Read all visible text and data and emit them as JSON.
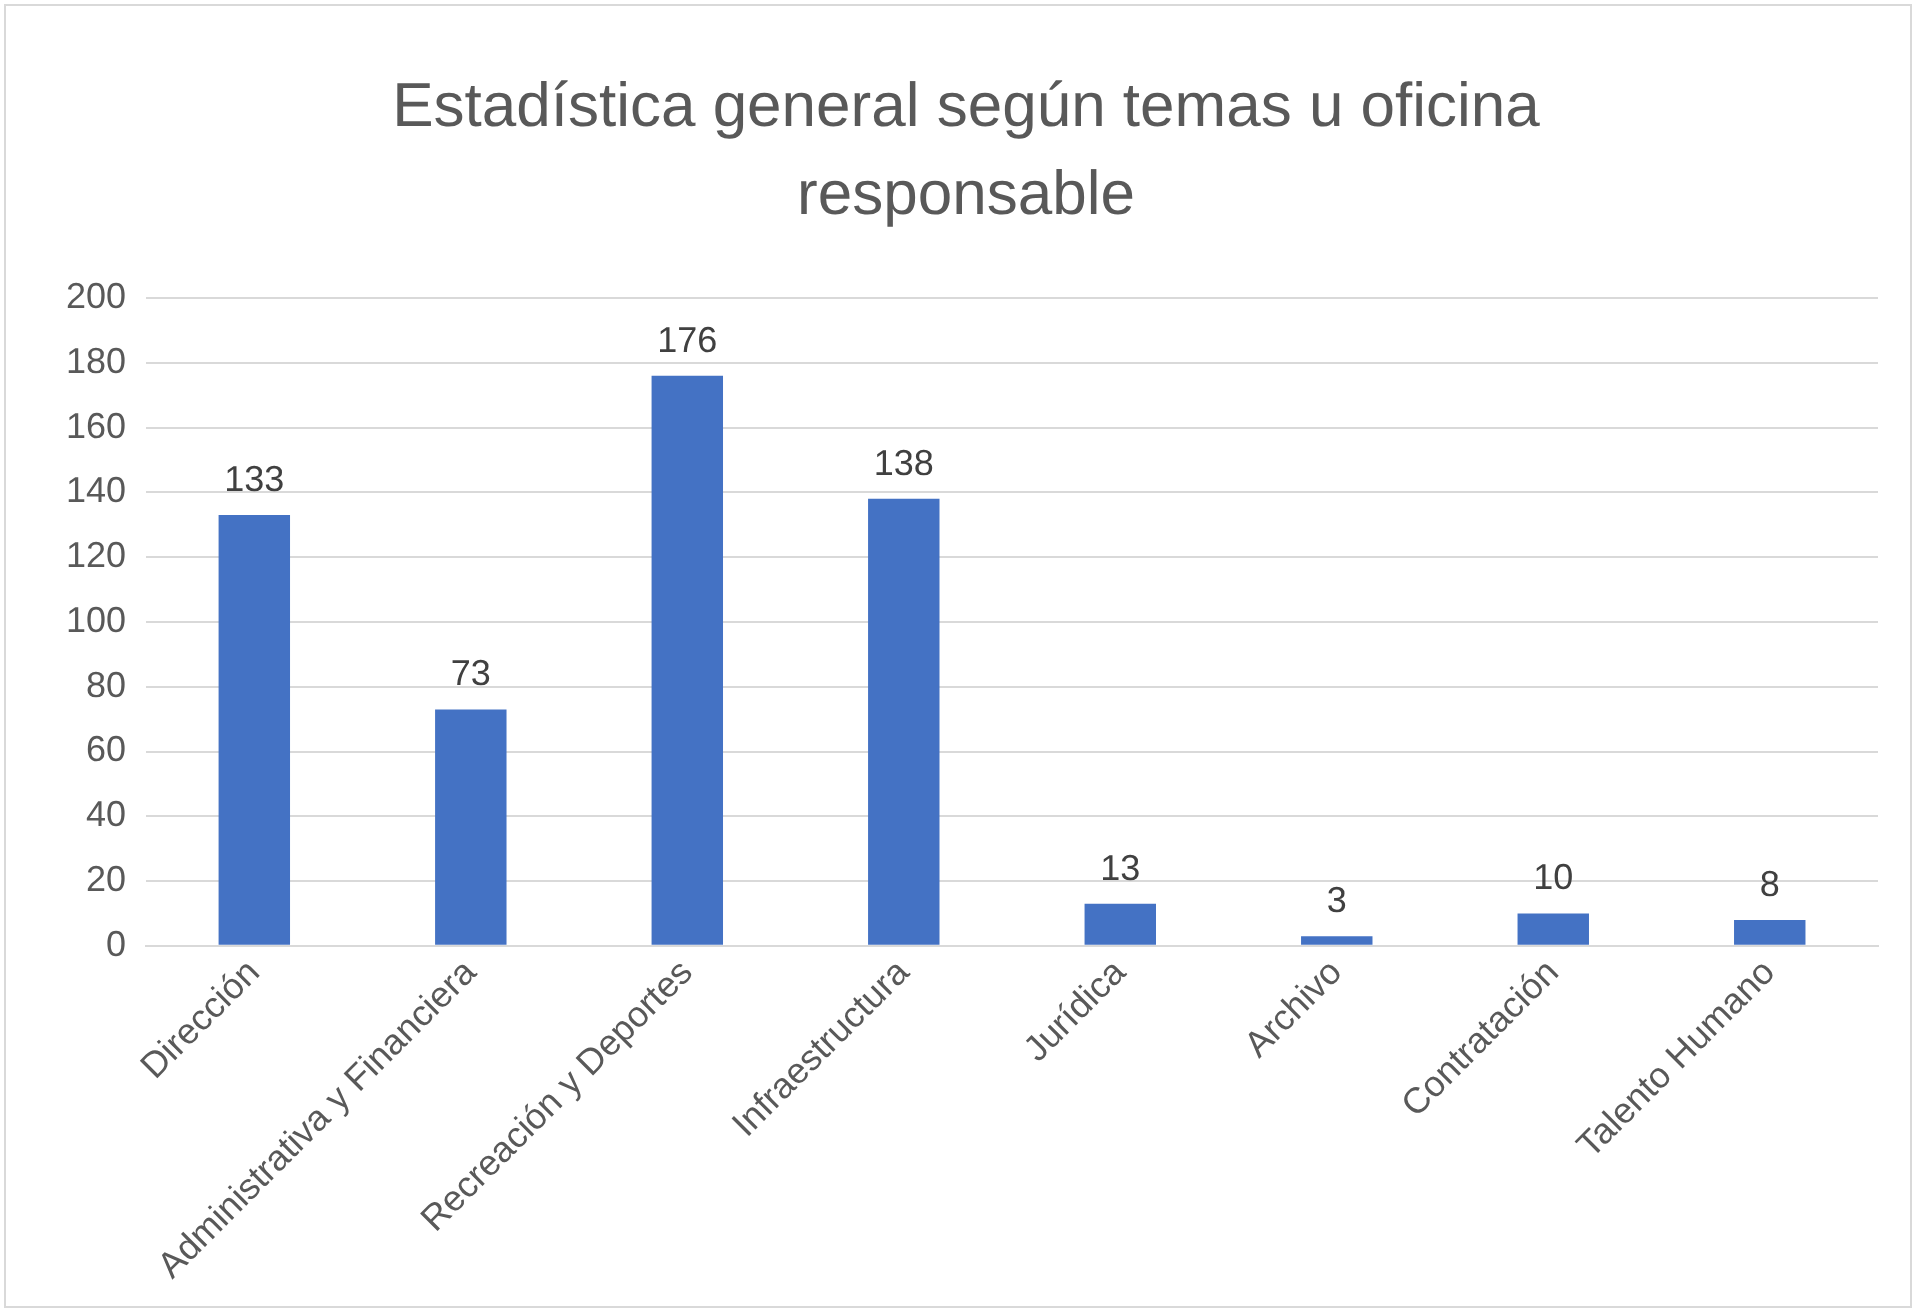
{
  "chart_data": {
    "type": "bar",
    "title": "Estadística general según temas u oficina responsable",
    "categories": [
      "Dirección",
      "Administrativa y Financiera",
      "Recreación y Deportes",
      "Infraestructura",
      "Jurídica",
      "Archivo",
      "Contratación",
      "Talento Humano"
    ],
    "values": [
      133,
      73,
      176,
      138,
      13,
      3,
      10,
      8
    ],
    "color": "#4472c4",
    "ylim": [
      0,
      200
    ],
    "yticks": [
      0,
      20,
      40,
      60,
      80,
      100,
      120,
      140,
      160,
      180,
      200
    ],
    "grid": "y",
    "legend": false,
    "data_labels": true
  }
}
